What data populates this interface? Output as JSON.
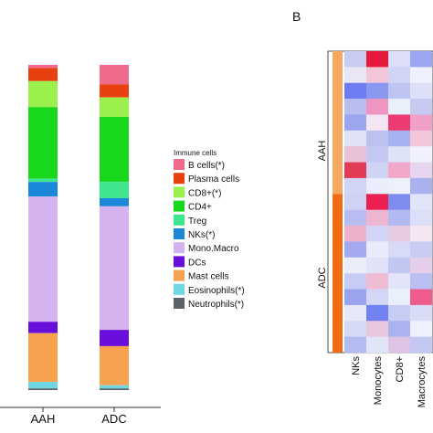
{
  "panel_label": "B",
  "chart_data": [
    {
      "type": "bar",
      "stacked": true,
      "normalized": true,
      "categories": [
        "AAH",
        "ADC"
      ],
      "legend": {
        "title": "Immune cells",
        "placement": "right"
      },
      "series": [
        {
          "name": "B cells(*)",
          "color": "#f06a8b",
          "values": [
            0.01,
            0.06
          ]
        },
        {
          "name": "Plasma cells",
          "color": "#e8400f",
          "values": [
            0.04,
            0.04
          ]
        },
        {
          "name": "CD8+(*)",
          "color": "#9bf04d",
          "values": [
            0.08,
            0.06
          ]
        },
        {
          "name": "CD4+",
          "color": "#17d81b",
          "values": [
            0.22,
            0.2
          ]
        },
        {
          "name": "Treg",
          "color": "#3ee690",
          "values": [
            0.01,
            0.05
          ]
        },
        {
          "name": "NKs(*)",
          "color": "#1b87d8",
          "values": [
            0.045,
            0.025
          ]
        },
        {
          "name": "Mono.Macro",
          "color": "#d4b3ef",
          "values": [
            0.385,
            0.38
          ]
        },
        {
          "name": "DCs",
          "color": "#6a0fdb",
          "values": [
            0.035,
            0.05
          ]
        },
        {
          "name": "Mast cells",
          "color": "#f7a24f",
          "values": [
            0.15,
            0.12
          ]
        },
        {
          "name": "Eosinophils(*)",
          "color": "#6fd6e4",
          "values": [
            0.02,
            0.01
          ]
        },
        {
          "name": "Neutrophils(*)",
          "color": "#5b6368",
          "values": [
            0.005,
            0.005
          ]
        }
      ]
    },
    {
      "type": "heatmap",
      "columns": [
        "NKs",
        "Monocytes",
        "CD8+",
        "Macrocytes"
      ],
      "row_groups": [
        {
          "name": "AAH",
          "color": "#f4a862",
          "rows": 9
        },
        {
          "name": "ADC",
          "color": "#f06d14",
          "rows": 10
        }
      ],
      "cell_colors": [
        [
          "#c8cbf2",
          "#e6193d",
          "#dcdff7",
          "#9aa6ef"
        ],
        [
          "#e9e6f6",
          "#f2c6d6",
          "#d0d4f5",
          "#eef0fb"
        ],
        [
          "#6d7cf0",
          "#8b98f0",
          "#bfc5f2",
          "#dde0f8"
        ],
        [
          "#b9bef0",
          "#ee95c2",
          "#eaf0fa",
          "#c6c9f2"
        ],
        [
          "#9ca6ef",
          "#f3e6f2",
          "#ec3a72",
          "#f0a0c8"
        ],
        [
          "#e0e3f8",
          "#bcc1f2",
          "#a8b1f0",
          "#f2c7d9"
        ],
        [
          "#e9c2d8",
          "#c3c9f3",
          "#dfe3f8",
          "#f0f1fb"
        ],
        [
          "#e23b55",
          "#cfd3f4",
          "#f1a8c9",
          "#e6d5ee"
        ],
        [
          "#d1d5f5",
          "#ecedfb",
          "#eef1fb",
          "#a9b1ef"
        ],
        [
          "#cfd2f4",
          "#ec2050",
          "#7f8cef",
          "#e2e5f8"
        ],
        [
          "#b7bdf1",
          "#eeb6d0",
          "#b2baf1",
          "#dbdff7"
        ],
        [
          "#eeb1cb",
          "#d2d6f6",
          "#e7c9e2",
          "#f3e7f1"
        ],
        [
          "#a3aaf0",
          "#e9ebfa",
          "#d7dbf7",
          "#c9cdf3"
        ],
        [
          "#ecedfb",
          "#dfe2f8",
          "#c2c7f2",
          "#e4cee9"
        ],
        [
          "#c7ccf4",
          "#f0bcd3",
          "#e2e5f9",
          "#b9bff2"
        ],
        [
          "#9aa3ee",
          "#d3d7f5",
          "#eaf0fb",
          "#ef5b8a"
        ],
        [
          "#e7e9f9",
          "#7181ef",
          "#c7ccf4",
          "#d9dcf7"
        ],
        [
          "#d6d9f6",
          "#e8c6de",
          "#aab2f0",
          "#eef0fb"
        ],
        [
          "#b4bbf1",
          "#e2e4f8",
          "#dfc3e5",
          "#c4c9f3"
        ]
      ]
    }
  ]
}
